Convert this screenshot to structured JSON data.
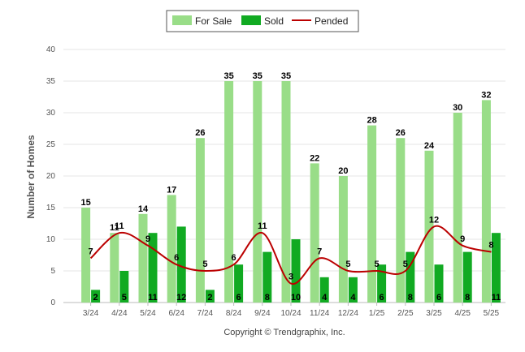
{
  "chart_data": {
    "type": "bar",
    "title": "",
    "xlabel": "",
    "ylabel": "Number of Homes",
    "ylim": [
      0,
      40
    ],
    "yticks": [
      0,
      5,
      10,
      15,
      20,
      25,
      30,
      35,
      40
    ],
    "grid": true,
    "legend_position": "top-center",
    "categories": [
      "3/24",
      "4/24",
      "5/24",
      "6/24",
      "7/24",
      "8/24",
      "9/24",
      "10/24",
      "11/24",
      "12/24",
      "1/25",
      "2/25",
      "3/25",
      "4/25",
      "5/25"
    ],
    "series": [
      {
        "name": "For Sale",
        "type": "bar",
        "color": "#99dd88",
        "values": [
          15,
          11,
          14,
          17,
          26,
          35,
          35,
          35,
          22,
          20,
          28,
          26,
          24,
          30,
          32
        ]
      },
      {
        "name": "Sold",
        "type": "bar",
        "color": "#11aa22",
        "values": [
          2,
          5,
          11,
          12,
          2,
          6,
          8,
          10,
          4,
          4,
          6,
          8,
          6,
          8,
          11
        ]
      },
      {
        "name": "Pended",
        "type": "line",
        "color": "#bb0000",
        "values": [
          7,
          11,
          9,
          6,
          5,
          6,
          11,
          3,
          7,
          5,
          5,
          5,
          12,
          9,
          8
        ]
      }
    ],
    "credit": "Copyright © Trendgraphix, Inc."
  }
}
